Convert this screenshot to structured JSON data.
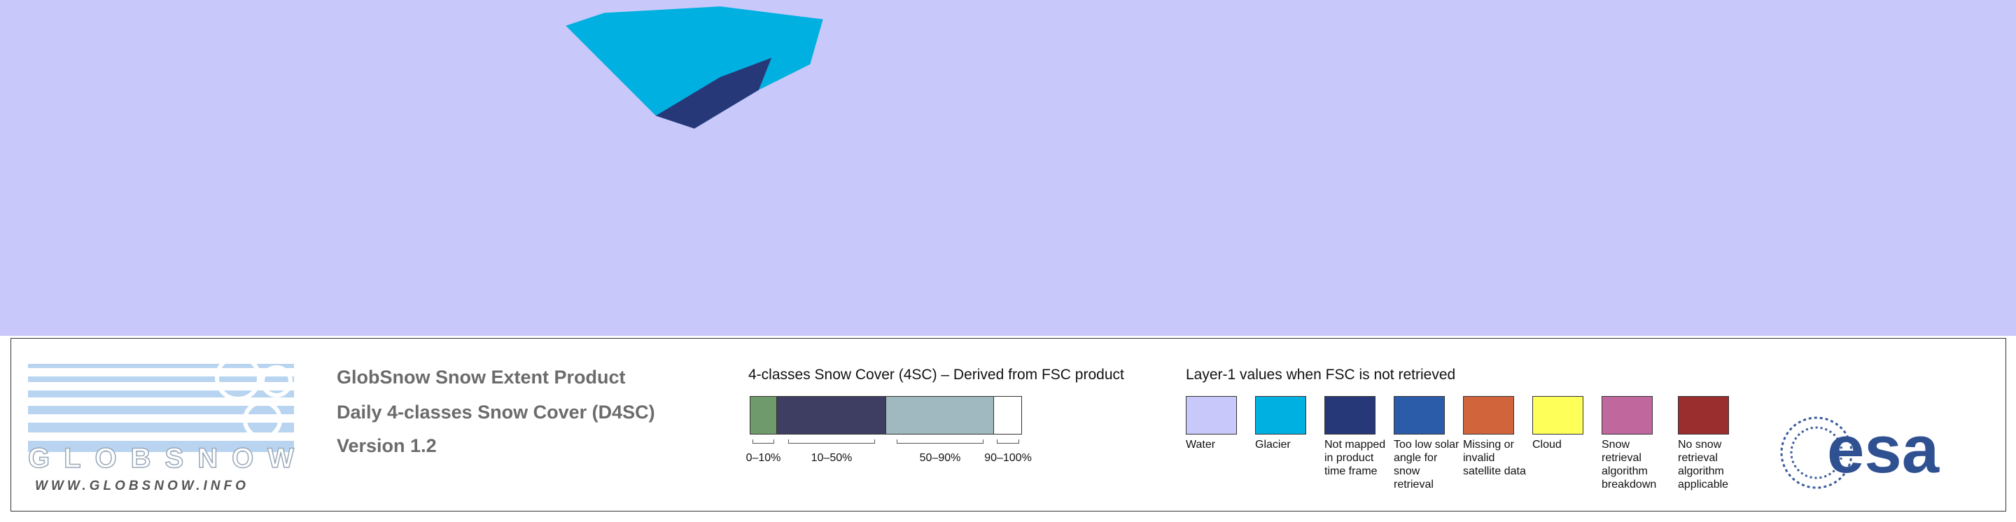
{
  "logo": {
    "name": "GLOBSNOW",
    "url": "WWW.GLOBSNOW.INFO"
  },
  "product": {
    "lines": [
      "GlobSnow Snow Extent Product",
      "Daily 4-classes Snow Cover (D4SC)",
      "Version 1.2"
    ]
  },
  "scale": {
    "title": "4-classes Snow Cover (4SC) – Derived from FSC product",
    "classes": [
      {
        "label": "0–10%",
        "color": "#6f9a6b"
      },
      {
        "label": "10–50%",
        "color": "#3e3e62"
      },
      {
        "label": "50–90%",
        "color": "#a0b8c0"
      },
      {
        "label": "90–100%",
        "color": "#ffffff"
      }
    ]
  },
  "layer1": {
    "title": "Layer-1 values when FSC is not retrieved",
    "items": [
      {
        "label": "Water",
        "color": "#c8c8fa"
      },
      {
        "label": "Glacier",
        "color": "#00b0e0"
      },
      {
        "label": "Not mapped in product time frame",
        "color": "#273878"
      },
      {
        "label": "Too low solar angle for snow retrieval",
        "color": "#2a5caa"
      },
      {
        "label": "Missing or invalid satellite data",
        "color": "#d2643c"
      },
      {
        "label": "Cloud",
        "color": "#ffff5a"
      },
      {
        "label": "Snow retrieval algorithm breakdown",
        "color": "#c0689e"
      },
      {
        "label": "No snow retrieval algorithm applicable",
        "color": "#9a2e2e"
      }
    ]
  },
  "esa": "esa"
}
